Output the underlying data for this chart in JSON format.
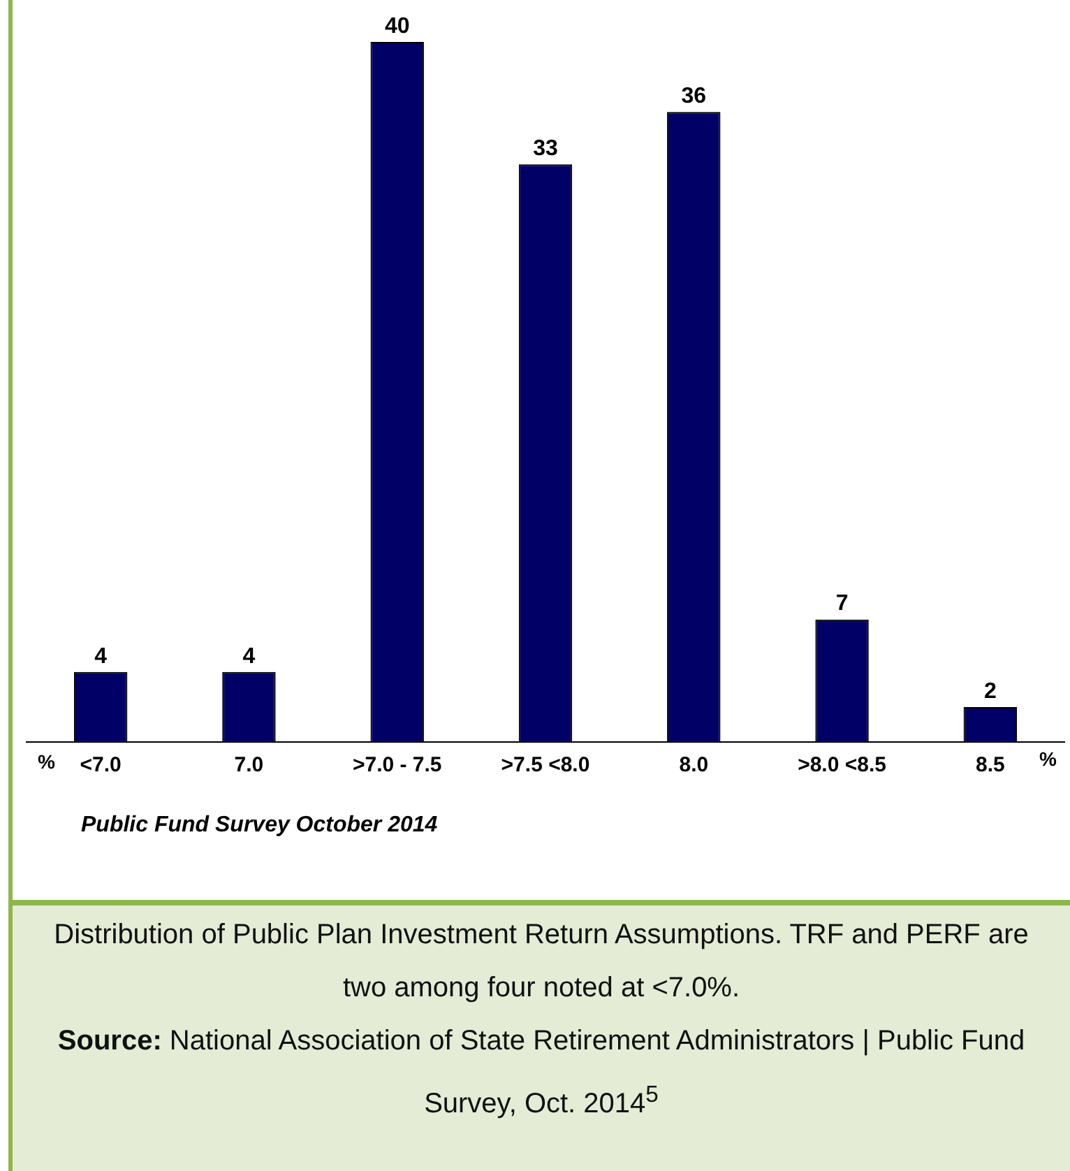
{
  "chart_data": {
    "type": "bar",
    "categories": [
      "<7.0",
      "7.0",
      ">7.0 - 7.5",
      ">7.5 <8.0",
      "8.0",
      ">8.0 <8.5",
      "8.5"
    ],
    "values": [
      4,
      4,
      40,
      33,
      36,
      7,
      2
    ],
    "color": "#000066",
    "ylim": [
      0,
      40
    ],
    "data_labels": true,
    "legend": false,
    "grid": false,
    "tick_labels": "x",
    "annotations": [
      "%",
      "%",
      "Public Fund Survey October 2014",
      "Distribution of Public Plan Investment Return Assumptions. TRF and PERF are two among four noted at <7.0%.",
      "Source: National Association of State Retirement Administrators | Public Fund Survey, Oct. 2014$^{5}$"
    ]
  }
}
